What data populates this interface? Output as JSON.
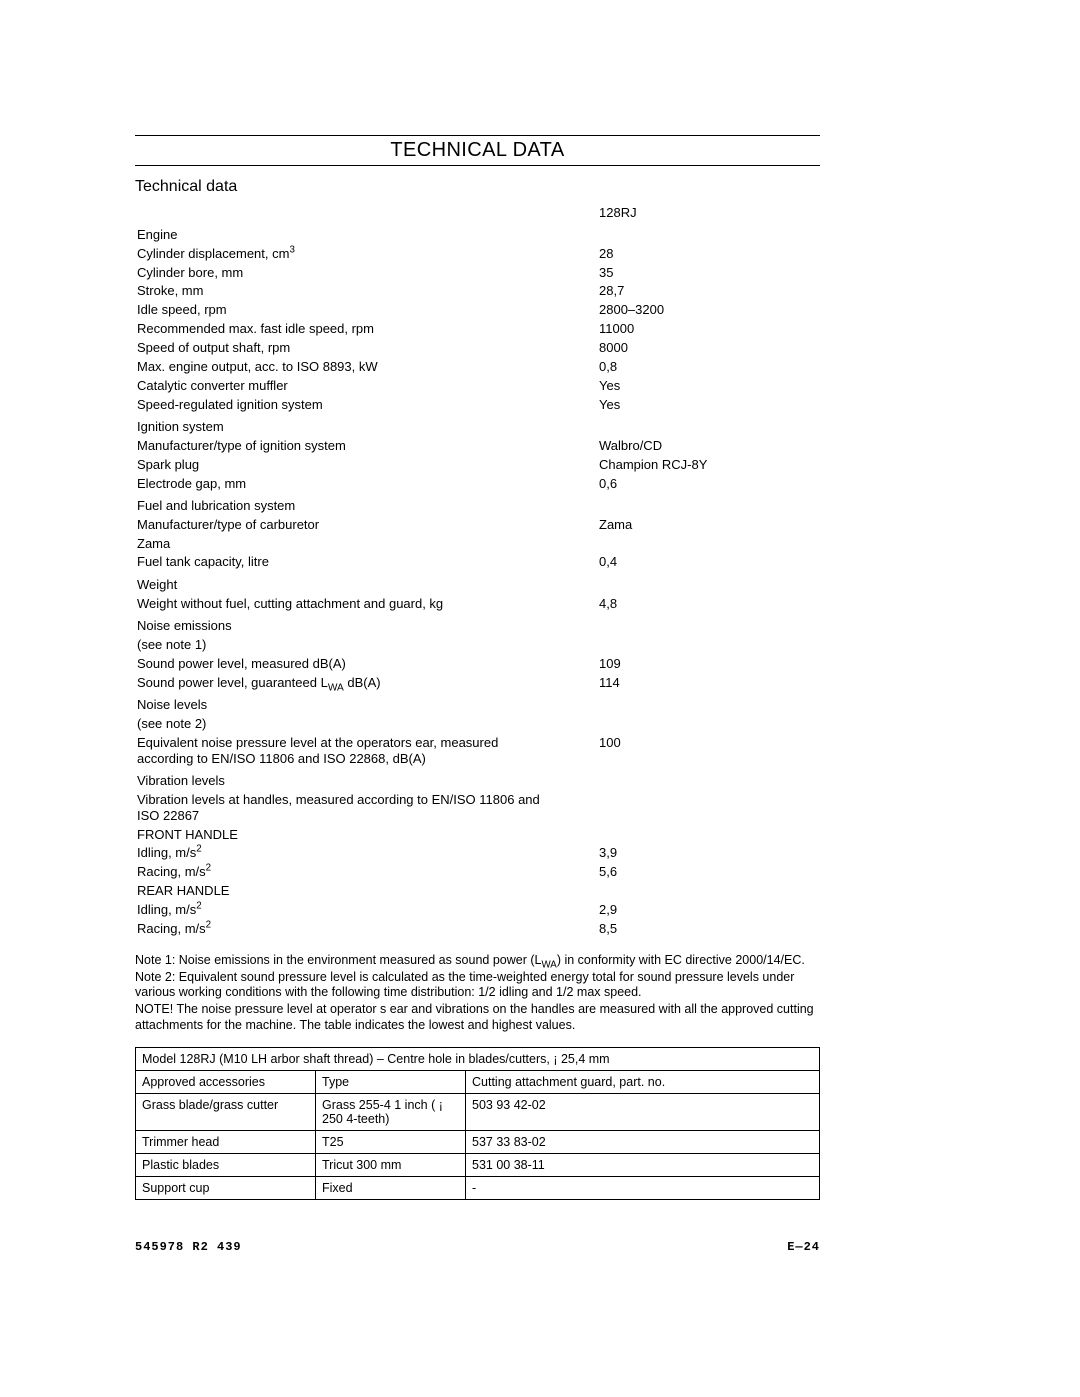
{
  "page_title": "TECHNICAL DATA",
  "section_title": "Technical data",
  "model_column_header": "128RJ",
  "specs": [
    {
      "group": "Engine"
    },
    {
      "label_html": "Cylinder displacement, cm<sup>3</sup>",
      "value": "28"
    },
    {
      "label": "Cylinder bore, mm",
      "value": "35"
    },
    {
      "label": "Stroke, mm",
      "value": "28,7"
    },
    {
      "label": "Idle speed, rpm",
      "value": "2800–3200"
    },
    {
      "label": "Recommended max. fast idle speed, rpm",
      "value": "11000"
    },
    {
      "label": "Speed of output shaft, rpm",
      "value": "8000"
    },
    {
      "label": "Max. engine output, acc. to ISO 8893, kW",
      "value": "0,8"
    },
    {
      "label": "Catalytic converter muffler",
      "value": "Yes"
    },
    {
      "label": "Speed-regulated ignition system",
      "value": "Yes"
    },
    {
      "group": "Ignition system"
    },
    {
      "label": "Manufacturer/type of ignition system",
      "value": "Walbro/CD"
    },
    {
      "label": "Spark plug",
      "value": "Champion RCJ-8Y"
    },
    {
      "label": "Electrode gap, mm",
      "value": "0,6"
    },
    {
      "group": "Fuel and lubrication system"
    },
    {
      "label": "Manufacturer/type of carburetor",
      "value": "Zama"
    },
    {
      "label": "Zama",
      "value": ""
    },
    {
      "label": "Fuel tank capacity, litre",
      "value": "0,4"
    },
    {
      "group": "Weight"
    },
    {
      "label": "Weight without fuel, cutting attachment and guard, kg",
      "value": "4,8"
    },
    {
      "group": "Noise emissions"
    },
    {
      "label": "(see note 1)",
      "value": ""
    },
    {
      "label": "Sound power level, measured dB(A)",
      "value": "109"
    },
    {
      "label_html": "Sound power level, guaranteed L<sub>WA</sub> dB(A)",
      "value": "114"
    },
    {
      "group": "Noise levels"
    },
    {
      "label": "(see note 2)",
      "value": ""
    },
    {
      "label": "Equivalent noise pressure level at the operators ear, measured according to EN/ISO 11806 and ISO 22868, dB(A)",
      "value": "100"
    },
    {
      "group": "Vibration levels"
    },
    {
      "label": "Vibration levels at handles, measured according to EN/ISO 11806 and ISO 22867",
      "value": ""
    },
    {
      "label": "FRONT HANDLE",
      "value": ""
    },
    {
      "label_html": "Idling, m/s<sup>2</sup>",
      "value": "3,9"
    },
    {
      "label_html": "Racing, m/s<sup>2</sup>",
      "value": "5,6"
    },
    {
      "label": "REAR HANDLE",
      "value": ""
    },
    {
      "label_html": "Idling, m/s<sup>2</sup>",
      "value": "2,9"
    },
    {
      "label_html": "Racing, m/s<sup>2</sup>",
      "value": "8,5"
    }
  ],
  "notes": [
    "Note 1: Noise emissions in the environment measured as sound power (L<sub>WA</sub>) in conformity with EC directive 2000/14/EC.",
    "Note 2: Equivalent sound pressure level is calculated as the time-weighted energy total for sound pressure levels under various working conditions with the following time distribution: 1/2 idling and 1/2 max speed.",
    "NOTE! The noise pressure level at operator s ear and vibrations on the handles are measured with all the approved cutting attachments for the machine. The table indicates the lowest and highest values."
  ],
  "accessories": {
    "header_row": "Model 128RJ (M10 LH arbor shaft thread) – Centre hole in blades/cutters, ¡ 25,4 mm",
    "columns": [
      "Approved accessories",
      "Type",
      "Cutting attachment guard, part. no."
    ],
    "rows": [
      [
        "Grass blade/grass cutter",
        "Grass 255-4 1 inch ( ¡ 250 4-teeth)",
        "503 93 42-02"
      ],
      [
        "Trimmer head",
        "T25",
        "537 33 83-02"
      ],
      [
        "Plastic blades",
        "Tricut 300 mm",
        "531 00 38-11"
      ],
      [
        "Support cup",
        "Fixed",
        "-"
      ]
    ]
  },
  "footer_left": "545978 R2 439",
  "footer_right": "E—24"
}
